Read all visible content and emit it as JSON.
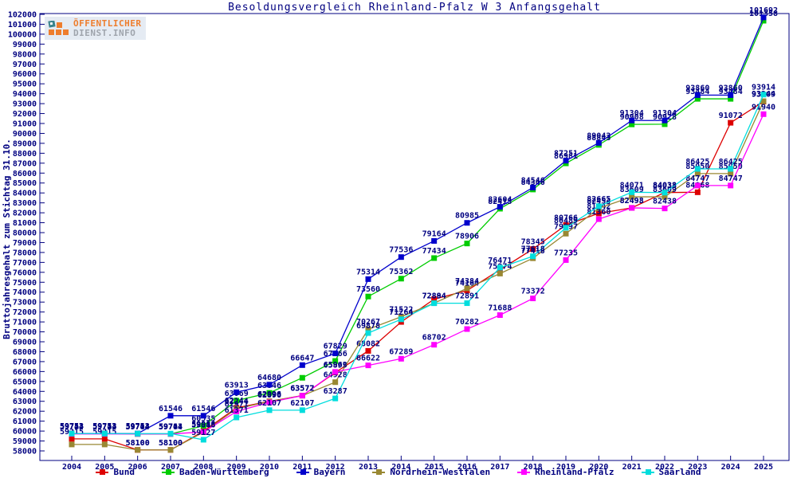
{
  "logo": {
    "line1": "ÖFFENTLICHER",
    "line2": "DIENST.INFO",
    "orange": "#ee7722",
    "gray": "#9aa0a8",
    "teal": "#2e7d86"
  },
  "chart_data": {
    "type": "line",
    "title": "Besoldungsvergleich Rheinland-Pfalz W 3 Anfangsgehalt",
    "xlabel": "",
    "ylabel": "Bruttojahresgehalt zum Stichtag 31.10.",
    "ylim": [
      58000,
      102000
    ],
    "ytick_step": 1000,
    "grid": false,
    "legend_position": "bottom",
    "axis_color": "#000080",
    "label_color": "#000080",
    "x": [
      2004,
      2005,
      2006,
      2007,
      2008,
      2009,
      2010,
      2011,
      2012,
      2013,
      2014,
      2015,
      2016,
      2017,
      2018,
      2019,
      2020,
      2021,
      2022,
      2023,
      2024,
      2025
    ],
    "series": [
      {
        "name": "Bund",
        "color": "#dd0000",
        "values": [
          59215,
          59215,
          58100,
          58100,
          59986,
          62344,
          62996,
          63577,
          65899,
          68082,
          71000,
          73290,
          74164,
          76254,
          78345,
          80766,
          81942,
          82498,
          84038,
          84068,
          91072,
          93209
        ],
        "label_hidden_indices": [
          10,
          11,
          13
        ]
      },
      {
        "name": "Baden-Württemberg",
        "color": "#00cc00",
        "values": [
          59753,
          59753,
          59704,
          59704,
          60535,
          63069,
          63846,
          65369,
          67066,
          73560,
          75362,
          77434,
          78906,
          82413,
          84346,
          86981,
          88843,
          90908,
          90928,
          93484,
          93484,
          101358
        ],
        "label_hidden_indices": [
          7
        ]
      },
      {
        "name": "Bayern",
        "color": "#0000cc",
        "values": [
          59753,
          59753,
          59753,
          61546,
          61546,
          63913,
          64680,
          66647,
          67829,
          75314,
          77536,
          79164,
          80985,
          82604,
          84546,
          87251,
          89043,
          91304,
          91304,
          93860,
          93860,
          101692
        ],
        "label_hidden_indices": []
      },
      {
        "name": "Nordrhein-Westfalen",
        "color": "#998833",
        "values": [
          58650,
          58650,
          58100,
          58100,
          59886,
          62244,
          62990,
          63572,
          64928,
          70267,
          71522,
          72894,
          74384,
          75874,
          77418,
          79897,
          82454,
          83609,
          83609,
          85950,
          85950,
          93244
        ],
        "label_hidden_indices": [
          0,
          1
        ]
      },
      {
        "name": "Rheinland-Pfalz",
        "color": "#ff00ff",
        "values": [
          59713,
          59713,
          59713,
          59713,
          59913,
          61971,
          62896,
          63572,
          65963,
          66622,
          67289,
          68702,
          70282,
          71688,
          73372,
          77235,
          81360,
          82493,
          82438,
          84747,
          84747,
          91940
        ],
        "label_hidden_indices": []
      },
      {
        "name": "Saarland",
        "color": "#00dddd",
        "values": [
          59744,
          59744,
          59744,
          59744,
          59127,
          61371,
          62107,
          62107,
          63287,
          69878,
          71264,
          72884,
          72891,
          76471,
          77618,
          80489,
          82665,
          84071,
          84033,
          86425,
          86425,
          93914
        ],
        "label_hidden_indices": []
      }
    ]
  }
}
